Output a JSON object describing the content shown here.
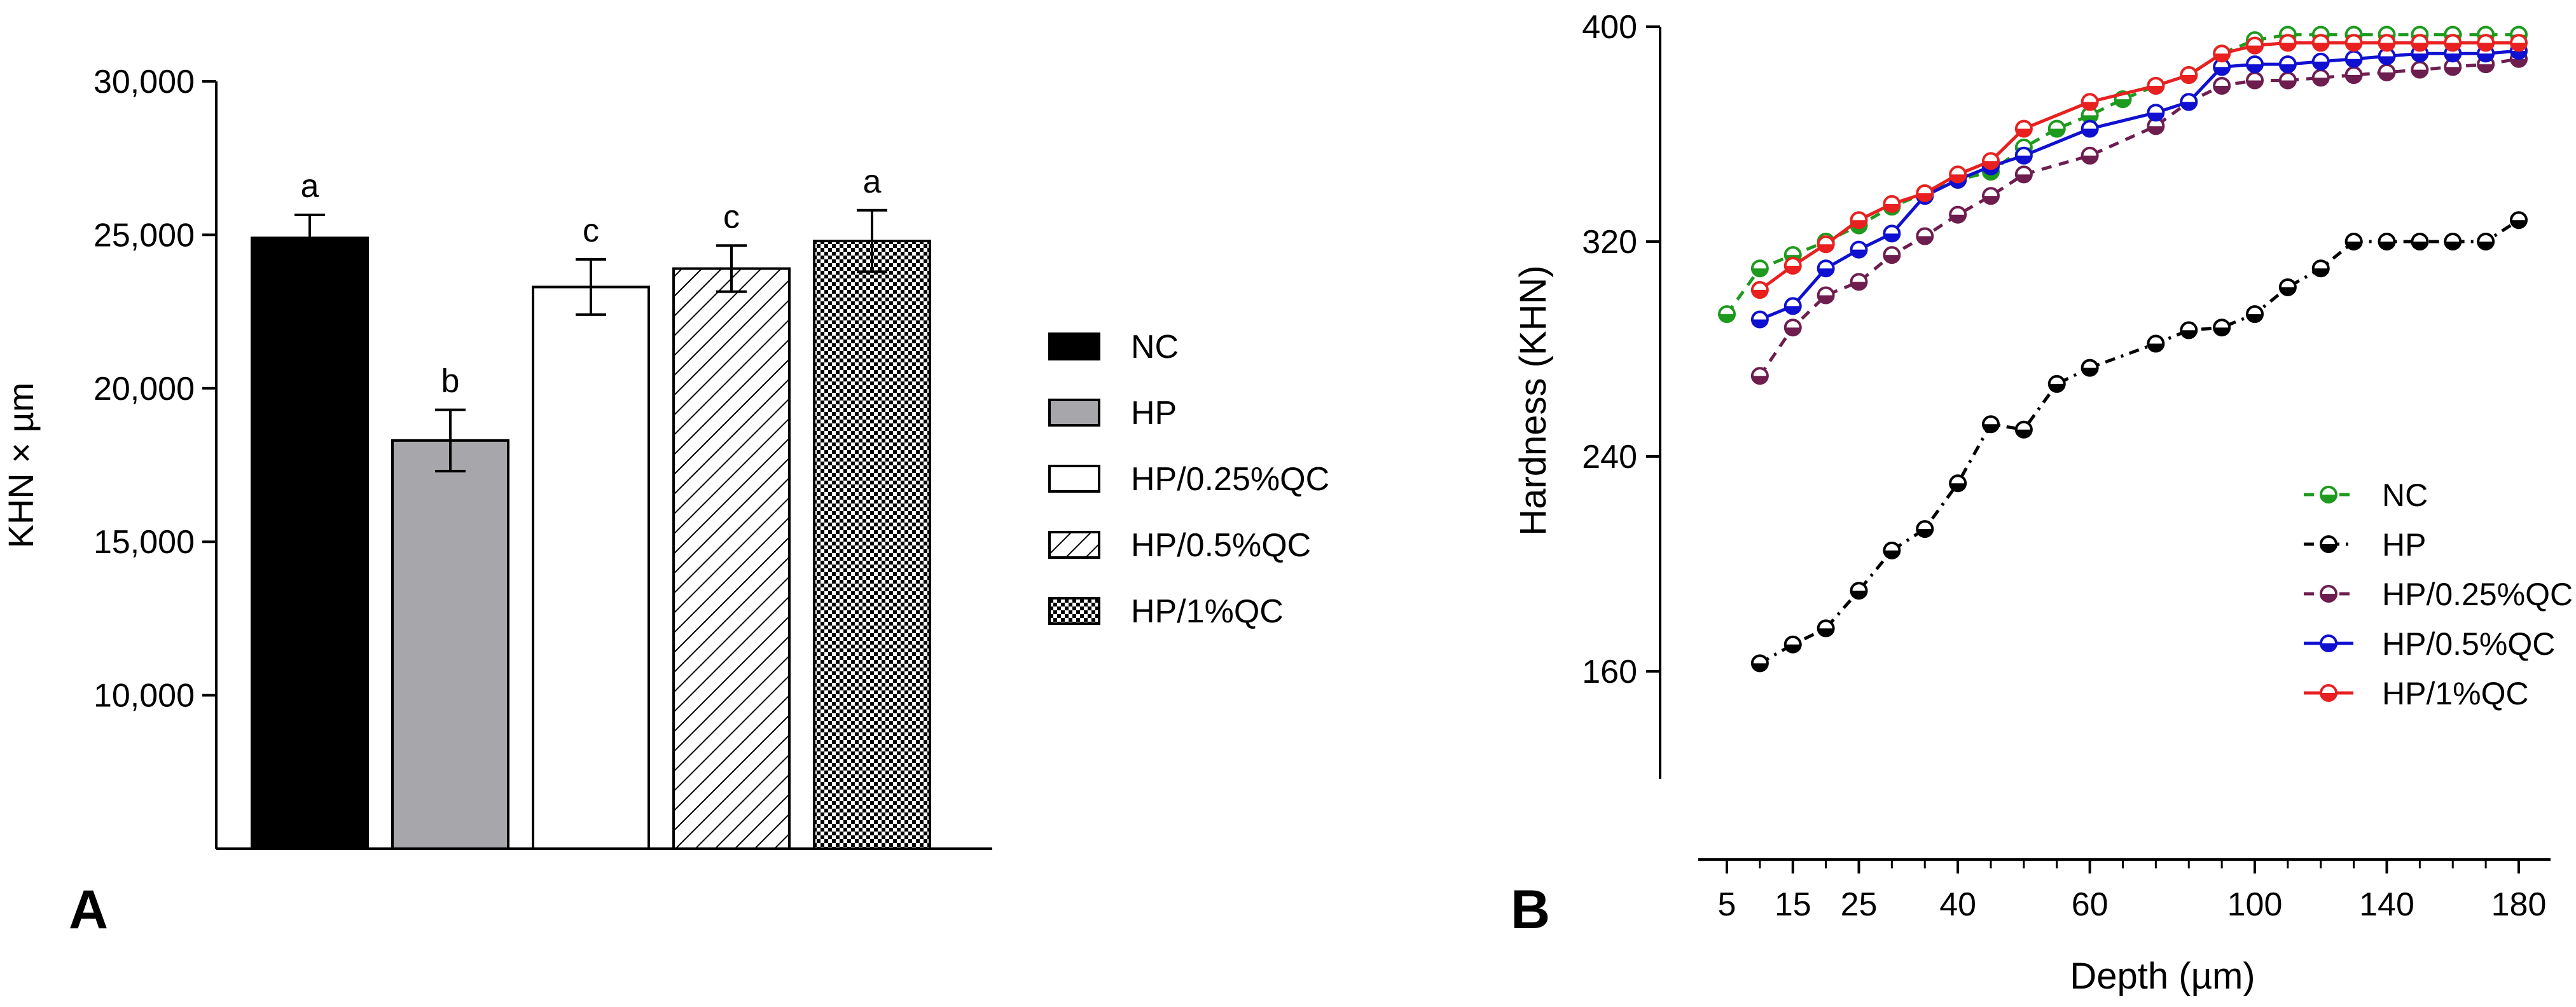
{
  "chart_data": [
    {
      "panel": "A",
      "type": "bar",
      "ylabel": "KHN × µm",
      "xlabel": "",
      "ylim": [
        5000,
        30000
      ],
      "yticks": [
        10000,
        15000,
        20000,
        25000,
        30000
      ],
      "ytick_labels": [
        "10,000",
        "15,000",
        "20,000",
        "25,000",
        "30,000"
      ],
      "categories": [
        "NC",
        "HP",
        "HP/0.25%QC",
        "HP/0.5%QC",
        "HP/1%QC"
      ],
      "values": [
        24900,
        18300,
        23300,
        23900,
        24800
      ],
      "errors": [
        750,
        1000,
        900,
        750,
        1000
      ],
      "letters": [
        "a",
        "b",
        "c",
        "c",
        "a"
      ],
      "fills": [
        "solid-black",
        "solid-gray",
        "white",
        "diagonal-hatch",
        "checker"
      ],
      "legend": [
        "NC",
        "HP",
        "HP/0.25%QC",
        "HP/0.5%QC",
        "HP/1%QC"
      ],
      "legend_position": "right"
    },
    {
      "panel": "B",
      "type": "line",
      "xlabel": "Depth (µm)",
      "ylabel": "Hardness (KHN)",
      "ylim": [
        120,
        400
      ],
      "yticks": [
        160,
        240,
        320,
        400
      ],
      "x_tick_labels": [
        "5",
        "15",
        "25",
        "40",
        "60",
        "100",
        "140",
        "180"
      ],
      "x": [
        5,
        10,
        15,
        20,
        25,
        30,
        35,
        40,
        45,
        50,
        55,
        60,
        65,
        70,
        80,
        90,
        100,
        110,
        120,
        130,
        140,
        150,
        160,
        170,
        180
      ],
      "legend_position": "bottom-right",
      "series": [
        {
          "name": "NC",
          "color": "#1e9a1e",
          "dash": "dash",
          "x": [
            5,
            10,
            15,
            20,
            25,
            30,
            35,
            40,
            45,
            50,
            55,
            60,
            65,
            70,
            80,
            90,
            100,
            110,
            120,
            130,
            140,
            150,
            160,
            170,
            180
          ],
          "values": [
            293,
            310,
            315,
            320,
            326,
            333,
            338,
            343,
            346,
            355,
            362,
            367,
            373,
            378,
            382,
            390,
            395,
            397,
            397,
            397,
            397,
            397,
            397,
            397,
            397
          ]
        },
        {
          "name": "HP",
          "color": "#000000",
          "dash": "dashdot",
          "x": [
            10,
            15,
            20,
            25,
            30,
            35,
            40,
            45,
            50,
            55,
            60,
            70,
            80,
            90,
            100,
            110,
            120,
            130,
            140,
            150,
            160,
            170,
            180
          ],
          "values": [
            163,
            170,
            176,
            190,
            205,
            213,
            230,
            252,
            250,
            267,
            273,
            282,
            287,
            288,
            293,
            303,
            310,
            320,
            320,
            320,
            320,
            320,
            328
          ]
        },
        {
          "name": "HP/0.25%QC",
          "color": "#6e1d4f",
          "dash": "dash",
          "x": [
            10,
            15,
            20,
            25,
            30,
            35,
            40,
            45,
            50,
            60,
            70,
            80,
            90,
            100,
            110,
            120,
            130,
            140,
            150,
            160,
            170,
            180
          ],
          "values": [
            270,
            288,
            300,
            305,
            315,
            322,
            330,
            337,
            345,
            352,
            363,
            372,
            378,
            380,
            380,
            381,
            382,
            383,
            384,
            385,
            386,
            388
          ]
        },
        {
          "name": "HP/0.5%QC",
          "color": "#1010d0",
          "dash": "solid",
          "x": [
            10,
            15,
            20,
            25,
            30,
            35,
            40,
            45,
            50,
            60,
            70,
            80,
            90,
            100,
            110,
            120,
            130,
            140,
            150,
            160,
            170,
            180
          ],
          "values": [
            291,
            296,
            310,
            317,
            323,
            337,
            343,
            348,
            352,
            362,
            368,
            372,
            385,
            386,
            386,
            387,
            388,
            389,
            390,
            390,
            390,
            391
          ]
        },
        {
          "name": "HP/1%QC",
          "color": "#e82020",
          "dash": "solid",
          "x": [
            10,
            15,
            20,
            25,
            30,
            35,
            40,
            45,
            50,
            60,
            70,
            80,
            90,
            100,
            110,
            120,
            130,
            140,
            150,
            160,
            170,
            180
          ],
          "values": [
            302,
            311,
            319,
            328,
            334,
            338,
            345,
            350,
            362,
            372,
            378,
            382,
            390,
            393,
            394,
            394,
            394,
            394,
            394,
            394,
            394,
            394
          ]
        }
      ]
    }
  ],
  "panel_labels": {
    "a": "A",
    "b": "B"
  }
}
